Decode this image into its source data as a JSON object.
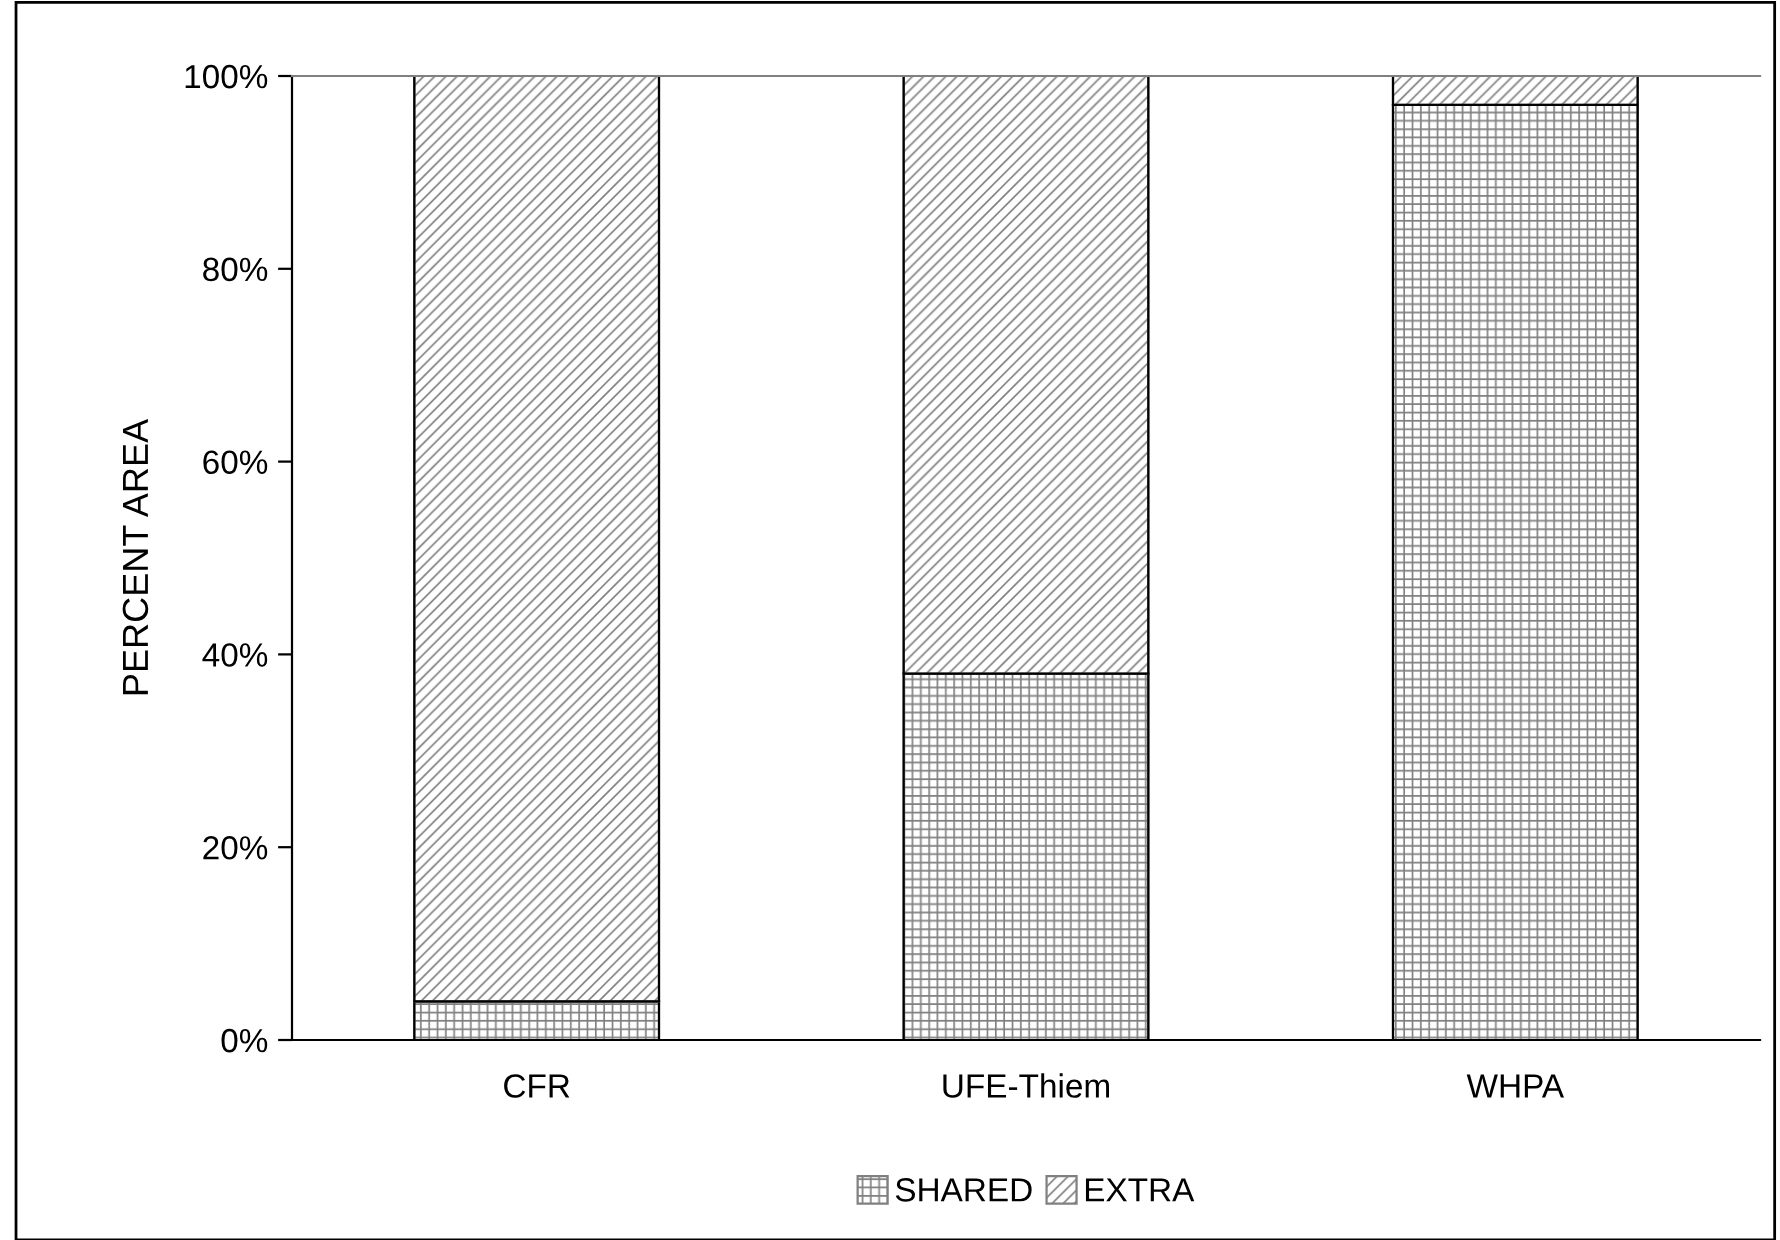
{
  "chart_data": {
    "type": "bar",
    "stacked": true,
    "ylabel": "PERCENT AREA",
    "categories": [
      "CFR",
      "UFE-Thiem",
      "WHPA"
    ],
    "series": [
      {
        "name": "SHARED",
        "color": "#808080",
        "values": [
          4,
          38,
          97
        ]
      },
      {
        "name": "EXTRA",
        "color": "#808080",
        "values": [
          96,
          62,
          3
        ]
      }
    ],
    "ylim": [
      0,
      100
    ],
    "yticks": [
      {
        "value": 0,
        "label": "0%"
      },
      {
        "value": 20,
        "label": "20%"
      },
      {
        "value": 40,
        "label": "40%"
      },
      {
        "value": 60,
        "label": "60%"
      },
      {
        "value": 80,
        "label": "80%"
      },
      {
        "value": 100,
        "label": "100%"
      }
    ],
    "grid": false,
    "legend": "bottom"
  }
}
